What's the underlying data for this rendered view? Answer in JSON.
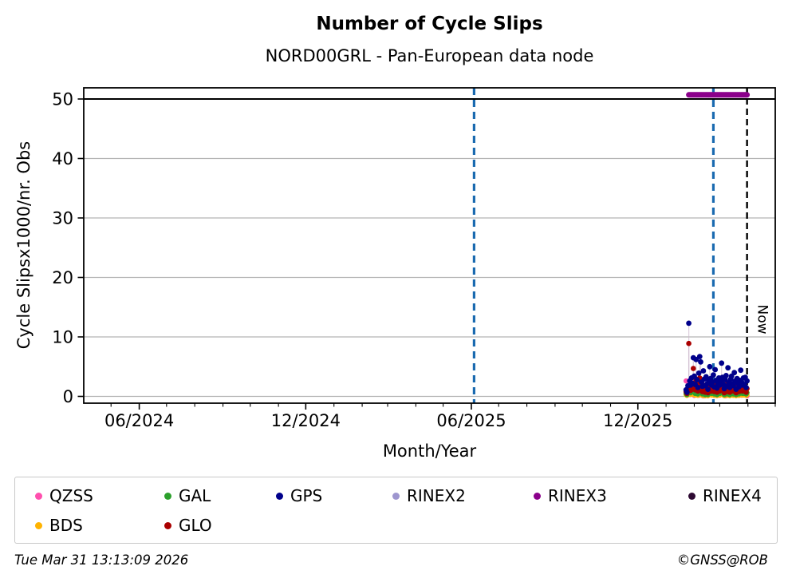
{
  "chart": {
    "title": "Number of Cycle Slips",
    "subtitle": "NORD00GRL - Pan-European data node",
    "xlabel": "Month/Year",
    "ylabel": "Cycle Slipsx1000/nr. Obs",
    "footer_left": "Tue Mar 31 13:13:09 2026",
    "footer_right": "©GNSS@ROB"
  },
  "chart_data": {
    "type": "scatter",
    "title": "Number of Cycle Slips",
    "subtitle": "NORD00GRL - Pan-European data node",
    "xlabel": "Month/Year",
    "ylabel": "Cycle Slipsx1000/nr. Obs",
    "x_axis": {
      "start": "2024-04-01",
      "end": "2026-05-01",
      "major_ticks": [
        {
          "date": "2024-06-01",
          "label": "06/2024"
        },
        {
          "date": "2024-12-01",
          "label": "12/2024"
        },
        {
          "date": "2025-06-01",
          "label": "06/2025"
        },
        {
          "date": "2025-12-01",
          "label": "12/2025"
        }
      ],
      "minor_tick_interval": "1 month"
    },
    "y_axis": {
      "ticks": [
        0,
        10,
        20,
        30,
        40,
        50
      ],
      "range": [
        -1.2,
        51.9
      ],
      "grid": true,
      "grid_color": "#b3b3b3"
    },
    "threshold_line": {
      "y": 50,
      "color": "#000000",
      "style": "solid"
    },
    "vlines": [
      {
        "date": "2025-06-04",
        "color": "#1a6ab0",
        "style": "dashed"
      },
      {
        "date": "2026-02-22",
        "color": "#1a6ab0",
        "style": "dashed"
      },
      {
        "date": "2026-03-31",
        "color": "#000000",
        "style": "dashed",
        "label": "Now"
      }
    ],
    "series_x_start": "2026-01-23",
    "series_x_step_days": 1,
    "series": [
      {
        "name": "QZSS",
        "color": "#ff4fae",
        "values": [
          2.6,
          0.2,
          null,
          null,
          0.3,
          null,
          null,
          null,
          null,
          0.15,
          null,
          null,
          null,
          null,
          0.2,
          null,
          null,
          null,
          null,
          0.1,
          null,
          null,
          null,
          null,
          null,
          0.25,
          null,
          null,
          null,
          null,
          null,
          0.15,
          null,
          null,
          null,
          null,
          null,
          0.2,
          null,
          null,
          null,
          null,
          null,
          0.1,
          null,
          null,
          null,
          null,
          null,
          0.2,
          null,
          null,
          null,
          null,
          null,
          0.15,
          null,
          null,
          null,
          null,
          null,
          0.2,
          null,
          null,
          null,
          null,
          null,
          0.1
        ]
      },
      {
        "name": "BDS",
        "color": "#ffb300",
        "values": [
          0.25,
          0.15,
          0.35,
          0.6,
          0.4,
          0.3,
          0.5,
          0.35,
          0.55,
          0.3,
          0.2,
          0.45,
          0.35,
          0.15,
          0.4,
          0.5,
          0.45,
          0.25,
          0.15,
          0.35,
          0.3,
          0.1,
          0.4,
          0.25,
          0.1,
          0.3,
          0.5,
          0.35,
          0.2,
          0.25,
          0.4,
          0.15,
          0.45,
          0.3,
          0.1,
          0.25,
          0.35,
          0.2,
          0.3,
          0.5,
          0.4,
          0.2,
          0.1,
          0.3,
          0.4,
          0.15,
          0.5,
          0.25,
          0.1,
          0.35,
          0.4,
          0.2,
          0.15,
          0.45,
          0.3,
          0.1,
          0.35,
          0.25,
          0.15,
          0.3,
          0.45,
          0.25,
          0.2,
          0.35,
          0.2,
          0.4,
          0.15,
          0.25
        ]
      },
      {
        "name": "GAL",
        "color": "#2ca02c",
        "values": [
          0.5,
          0.3,
          0.7,
          1.4,
          0.9,
          0.6,
          1.1,
          0.8,
          1.3,
          0.7,
          0.5,
          1.0,
          0.8,
          0.4,
          0.9,
          1.2,
          1.0,
          0.6,
          0.4,
          0.8,
          0.7,
          0.3,
          0.9,
          0.6,
          0.3,
          0.7,
          1.1,
          0.8,
          0.5,
          0.6,
          0.9,
          0.4,
          1.0,
          0.7,
          0.3,
          0.6,
          0.8,
          0.5,
          0.7,
          1.2,
          0.9,
          0.5,
          0.3,
          0.7,
          0.9,
          0.4,
          1.1,
          0.6,
          0.3,
          0.8,
          0.9,
          0.5,
          0.4,
          1.0,
          0.7,
          0.3,
          0.8,
          0.6,
          0.4,
          0.7,
          1.0,
          0.6,
          0.5,
          0.8,
          0.5,
          0.9,
          0.4,
          0.6
        ]
      },
      {
        "name": "GLO",
        "color": "#aa0000",
        "values": [
          0.8,
          0.5,
          1.2,
          8.9,
          1.6,
          1.0,
          2.1,
          1.4,
          4.7,
          2.3,
          1.1,
          2.9,
          1.7,
          0.9,
          2.2,
          3.1,
          2.5,
          1.3,
          0.8,
          1.9,
          1.5,
          0.7,
          1.8,
          1.1,
          0.6,
          1.4,
          2.4,
          1.6,
          0.9,
          1.2,
          1.9,
          0.8,
          2.2,
          1.5,
          0.7,
          1.1,
          1.7,
          0.9,
          1.3,
          2.6,
          1.8,
          1.0,
          0.6,
          1.5,
          1.9,
          0.8,
          2.3,
          1.2,
          0.7,
          1.6,
          1.8,
          1.0,
          0.9,
          2.0,
          1.3,
          0.6,
          1.5,
          1.1,
          0.8,
          1.4,
          2.1,
          1.2,
          0.9,
          1.6,
          1.0,
          1.7,
          0.7,
          1.3
        ]
      },
      {
        "name": "GPS",
        "color": "#00008b",
        "values": [
          1.1,
          0.7,
          1.8,
          12.3,
          2.6,
          1.9,
          3.1,
          2.2,
          6.5,
          3.4,
          2.0,
          6.2,
          2.8,
          1.5,
          3.9,
          6.7,
          5.8,
          2.4,
          1.7,
          4.3,
          2.9,
          1.8,
          3.3,
          2.1,
          1.2,
          2.6,
          5.0,
          3.0,
          1.9,
          2.4,
          3.6,
          1.6,
          4.5,
          2.7,
          1.4,
          2.2,
          3.1,
          1.9,
          2.5,
          5.6,
          3.2,
          2.0,
          1.3,
          2.8,
          3.5,
          1.7,
          4.8,
          2.3,
          1.5,
          2.9,
          3.4,
          2.1,
          1.8,
          4.0,
          2.6,
          1.2,
          3.0,
          2.2,
          1.6,
          2.7,
          4.4,
          2.4,
          1.9,
          3.1,
          2.0,
          3.2,
          1.5,
          2.6
        ]
      },
      {
        "name": "RINEX3",
        "color": "#8b008b",
        "constant_value": 50.7,
        "from_day": 3,
        "to_day": 67
      }
    ],
    "legend": [
      {
        "label": "QZSS",
        "color": "#ff4fae"
      },
      {
        "label": "GAL",
        "color": "#2ca02c"
      },
      {
        "label": "GPS",
        "color": "#00008b"
      },
      {
        "label": "RINEX2",
        "color": "#9e96cf"
      },
      {
        "label": "RINEX3",
        "color": "#8b008b"
      },
      {
        "label": "RINEX4",
        "color": "#2e0a33"
      },
      {
        "label": "BDS",
        "color": "#ffb300"
      },
      {
        "label": "GLO",
        "color": "#aa0000"
      }
    ],
    "legend_position": "bottom"
  }
}
